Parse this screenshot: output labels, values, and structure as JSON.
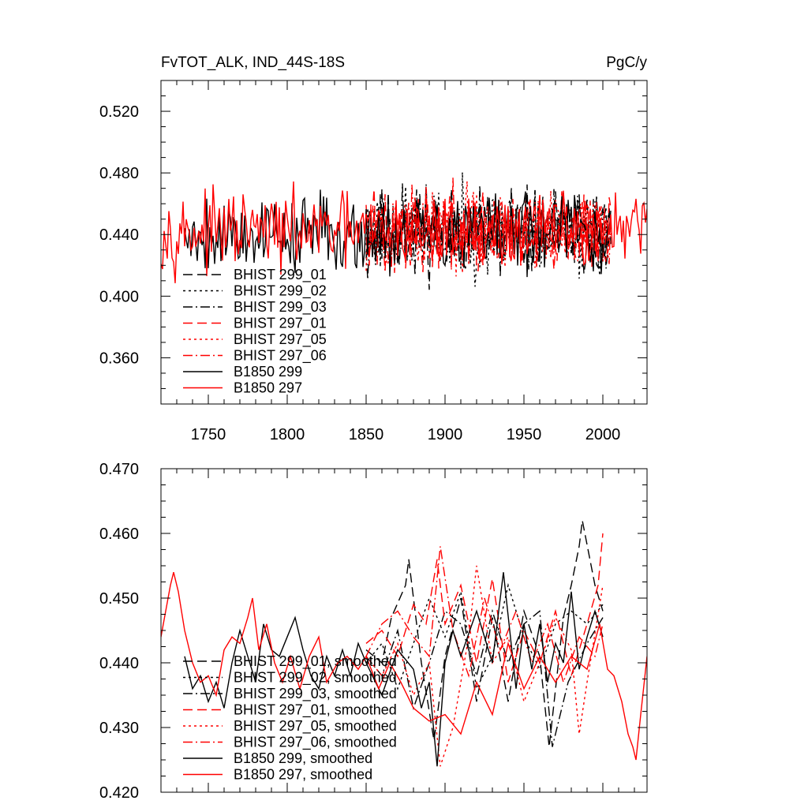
{
  "chart_data": [
    {
      "type": "line",
      "title": "FvTOT_ALK, IND_44S-18S",
      "units": "PgC/y",
      "xlabel": "",
      "ylabel": "",
      "xlim": [
        1720,
        2028
      ],
      "ylim": [
        0.33,
        0.54
      ],
      "x_ticks": [
        1750,
        1800,
        1850,
        1900,
        1950,
        2000
      ],
      "x_tick_labels": [
        "1750",
        "1800",
        "1850",
        "1900",
        "1950",
        "2000"
      ],
      "y_ticks": [
        0.36,
        0.4,
        0.44,
        0.48,
        0.52
      ],
      "y_tick_labels": [
        "0.360",
        "0.400",
        "0.440",
        "0.480",
        "0.520"
      ],
      "legend_position": "lower-left",
      "series": [
        {
          "name": "BHIST 299_01",
          "color": "#000000",
          "dash": "long-dash",
          "x_start": 1850,
          "x_end": 2005,
          "mean": 0.442,
          "amplitude": 0.024,
          "seed": 11
        },
        {
          "name": "BHIST 299_02",
          "color": "#000000",
          "dash": "dot",
          "x_start": 1850,
          "x_end": 2005,
          "mean": 0.442,
          "amplitude": 0.024,
          "seed": 23
        },
        {
          "name": "BHIST 299_03",
          "color": "#000000",
          "dash": "dash-dot",
          "x_start": 1850,
          "x_end": 2005,
          "mean": 0.442,
          "amplitude": 0.024,
          "seed": 37
        },
        {
          "name": "BHIST 297_01",
          "color": "#ff0000",
          "dash": "long-dash",
          "x_start": 1850,
          "x_end": 2005,
          "mean": 0.443,
          "amplitude": 0.022,
          "seed": 41
        },
        {
          "name": "BHIST 297_05",
          "color": "#ff0000",
          "dash": "dot",
          "x_start": 1850,
          "x_end": 2005,
          "mean": 0.443,
          "amplitude": 0.022,
          "seed": 53
        },
        {
          "name": "BHIST 297_06",
          "color": "#ff0000",
          "dash": "dash-dot",
          "x_start": 1850,
          "x_end": 2005,
          "mean": 0.443,
          "amplitude": 0.022,
          "seed": 67
        },
        {
          "name": "B1850 299",
          "color": "#000000",
          "dash": "solid",
          "x_start": 1735,
          "x_end": 2005,
          "mean": 0.441,
          "amplitude": 0.022,
          "seed": 79
        },
        {
          "name": "B1850 297",
          "color": "#ff0000",
          "dash": "solid",
          "x_start": 1720,
          "x_end": 2028,
          "mean": 0.442,
          "amplitude": 0.02,
          "seed": 97
        }
      ]
    },
    {
      "type": "line",
      "title": "",
      "xlabel": "",
      "ylabel": "",
      "xlim": [
        1720,
        2028
      ],
      "ylim": [
        0.42,
        0.47
      ],
      "x_ticks": [
        1750,
        1800,
        1850,
        1900,
        1950,
        2000
      ],
      "y_ticks": [
        0.42,
        0.43,
        0.44,
        0.45,
        0.46,
        0.47
      ],
      "y_tick_labels": [
        "0.420",
        "0.430",
        "0.440",
        "0.450",
        "0.460",
        "0.470"
      ],
      "legend_position": "lower-left",
      "series": [
        {
          "name": "BHIST 299_01, smoothed",
          "color": "#000000",
          "dash": "long-dash",
          "points": [
            [
              1850,
              0.442
            ],
            [
              1860,
              0.44
            ],
            [
              1866,
              0.447
            ],
            [
              1875,
              0.452
            ],
            [
              1877,
              0.456
            ],
            [
              1885,
              0.44
            ],
            [
              1893,
              0.428
            ],
            [
              1900,
              0.441
            ],
            [
              1910,
              0.45
            ],
            [
              1920,
              0.434
            ],
            [
              1930,
              0.447
            ],
            [
              1940,
              0.434
            ],
            [
              1950,
              0.448
            ],
            [
              1960,
              0.441
            ],
            [
              1966,
              0.427
            ],
            [
              1975,
              0.447
            ],
            [
              1980,
              0.452
            ],
            [
              1985,
              0.458
            ],
            [
              1987,
              0.462
            ],
            [
              1995,
              0.452
            ],
            [
              2000,
              0.448
            ]
          ]
        },
        {
          "name": "BHIST 299_02, smoothed",
          "color": "#000000",
          "dash": "dot",
          "points": [
            [
              1850,
              0.44
            ],
            [
              1860,
              0.443
            ],
            [
              1870,
              0.436
            ],
            [
              1880,
              0.443
            ],
            [
              1890,
              0.45
            ],
            [
              1900,
              0.444
            ],
            [
              1910,
              0.451
            ],
            [
              1920,
              0.436
            ],
            [
              1930,
              0.441
            ],
            [
              1940,
              0.452
            ],
            [
              1950,
              0.444
            ],
            [
              1960,
              0.439
            ],
            [
              1970,
              0.446
            ],
            [
              1980,
              0.448
            ],
            [
              1990,
              0.446
            ],
            [
              2000,
              0.449
            ]
          ]
        },
        {
          "name": "BHIST 299_03, smoothed",
          "color": "#000000",
          "dash": "dash-dot",
          "points": [
            [
              1850,
              0.441
            ],
            [
              1860,
              0.438
            ],
            [
              1870,
              0.445
            ],
            [
              1880,
              0.433
            ],
            [
              1890,
              0.44
            ],
            [
              1900,
              0.448
            ],
            [
              1910,
              0.446
            ],
            [
              1920,
              0.438
            ],
            [
              1930,
              0.448
            ],
            [
              1940,
              0.44
            ],
            [
              1950,
              0.446
            ],
            [
              1960,
              0.448
            ],
            [
              1968,
              0.427
            ],
            [
              1978,
              0.437
            ],
            [
              1990,
              0.443
            ],
            [
              2000,
              0.447
            ]
          ]
        },
        {
          "name": "BHIST 297_01, smoothed",
          "color": "#ff0000",
          "dash": "long-dash",
          "points": [
            [
              1850,
              0.443
            ],
            [
              1860,
              0.445
            ],
            [
              1870,
              0.441
            ],
            [
              1880,
              0.449
            ],
            [
              1888,
              0.446
            ],
            [
              1895,
              0.456
            ],
            [
              1900,
              0.446
            ],
            [
              1910,
              0.452
            ],
            [
              1920,
              0.44
            ],
            [
              1930,
              0.453
            ],
            [
              1940,
              0.437
            ],
            [
              1950,
              0.445
            ],
            [
              1960,
              0.44
            ],
            [
              1970,
              0.448
            ],
            [
              1980,
              0.438
            ],
            [
              1990,
              0.446
            ],
            [
              1997,
              0.452
            ],
            [
              2000,
              0.46
            ]
          ]
        },
        {
          "name": "BHIST 297_05, smoothed",
          "color": "#ff0000",
          "dash": "dot",
          "points": [
            [
              1850,
              0.441
            ],
            [
              1860,
              0.438
            ],
            [
              1870,
              0.443
            ],
            [
              1880,
              0.435
            ],
            [
              1890,
              0.44
            ],
            [
              1897,
              0.424
            ],
            [
              1905,
              0.43
            ],
            [
              1915,
              0.444
            ],
            [
              1920,
              0.455
            ],
            [
              1930,
              0.44
            ],
            [
              1940,
              0.444
            ],
            [
              1950,
              0.434
            ],
            [
              1960,
              0.44
            ],
            [
              1970,
              0.447
            ],
            [
              1980,
              0.442
            ],
            [
              1985,
              0.429
            ],
            [
              1990,
              0.437
            ],
            [
              2000,
              0.452
            ]
          ]
        },
        {
          "name": "BHIST 297_06, smoothed",
          "color": "#ff0000",
          "dash": "dash-dot",
          "points": [
            [
              1850,
              0.441
            ],
            [
              1860,
              0.446
            ],
            [
              1870,
              0.448
            ],
            [
              1880,
              0.444
            ],
            [
              1890,
              0.441
            ],
            [
              1897,
              0.458
            ],
            [
              1905,
              0.445
            ],
            [
              1915,
              0.438
            ],
            [
              1925,
              0.45
            ],
            [
              1935,
              0.442
            ],
            [
              1945,
              0.448
            ],
            [
              1955,
              0.44
            ],
            [
              1965,
              0.446
            ],
            [
              1975,
              0.437
            ],
            [
              1985,
              0.444
            ],
            [
              1995,
              0.441
            ],
            [
              2000,
              0.446
            ]
          ]
        },
        {
          "name": "B1850 299, smoothed",
          "color": "#000000",
          "dash": "solid",
          "points": [
            [
              1735,
              0.441
            ],
            [
              1740,
              0.436
            ],
            [
              1745,
              0.438
            ],
            [
              1750,
              0.434
            ],
            [
              1755,
              0.437
            ],
            [
              1760,
              0.433
            ],
            [
              1765,
              0.44
            ],
            [
              1770,
              0.445
            ],
            [
              1775,
              0.441
            ],
            [
              1780,
              0.437
            ],
            [
              1785,
              0.446
            ],
            [
              1790,
              0.442
            ],
            [
              1795,
              0.441
            ],
            [
              1800,
              0.444
            ],
            [
              1805,
              0.447
            ],
            [
              1810,
              0.442
            ],
            [
              1815,
              0.438
            ],
            [
              1820,
              0.436
            ],
            [
              1825,
              0.441
            ],
            [
              1830,
              0.438
            ],
            [
              1835,
              0.442
            ],
            [
              1840,
              0.438
            ],
            [
              1845,
              0.443
            ],
            [
              1850,
              0.44
            ],
            [
              1860,
              0.435
            ],
            [
              1870,
              0.442
            ],
            [
              1880,
              0.439
            ],
            [
              1885,
              0.433
            ],
            [
              1890,
              0.437
            ],
            [
              1895,
              0.424
            ],
            [
              1900,
              0.44
            ],
            [
              1905,
              0.445
            ],
            [
              1910,
              0.441
            ],
            [
              1920,
              0.448
            ],
            [
              1930,
              0.44
            ],
            [
              1937,
              0.454
            ],
            [
              1945,
              0.436
            ],
            [
              1950,
              0.446
            ],
            [
              1955,
              0.439
            ],
            [
              1960,
              0.446
            ],
            [
              1965,
              0.437
            ],
            [
              1970,
              0.443
            ],
            [
              1975,
              0.44
            ],
            [
              1980,
              0.451
            ],
            [
              1985,
              0.439
            ],
            [
              1990,
              0.444
            ],
            [
              1995,
              0.448
            ],
            [
              2000,
              0.444
            ]
          ]
        },
        {
          "name": "B1850 297, smoothed",
          "color": "#ff0000",
          "dash": "solid",
          "points": [
            [
              1720,
              0.444
            ],
            [
              1723,
              0.448
            ],
            [
              1726,
              0.452
            ],
            [
              1728,
              0.454
            ],
            [
              1731,
              0.451
            ],
            [
              1735,
              0.445
            ],
            [
              1740,
              0.44
            ],
            [
              1745,
              0.437
            ],
            [
              1750,
              0.438
            ],
            [
              1755,
              0.435
            ],
            [
              1760,
              0.442
            ],
            [
              1765,
              0.444
            ],
            [
              1770,
              0.443
            ],
            [
              1775,
              0.447
            ],
            [
              1778,
              0.45
            ],
            [
              1782,
              0.442
            ],
            [
              1787,
              0.446
            ],
            [
              1792,
              0.44
            ],
            [
              1797,
              0.437
            ],
            [
              1802,
              0.441
            ],
            [
              1808,
              0.436
            ],
            [
              1814,
              0.441
            ],
            [
              1820,
              0.444
            ],
            [
              1825,
              0.437
            ],
            [
              1832,
              0.44
            ],
            [
              1838,
              0.441
            ],
            [
              1845,
              0.439
            ],
            [
              1850,
              0.441
            ],
            [
              1858,
              0.436
            ],
            [
              1865,
              0.44
            ],
            [
              1872,
              0.437
            ],
            [
              1880,
              0.433
            ],
            [
              1890,
              0.431
            ],
            [
              1900,
              0.432
            ],
            [
              1910,
              0.429
            ],
            [
              1920,
              0.437
            ],
            [
              1930,
              0.432
            ],
            [
              1940,
              0.443
            ],
            [
              1950,
              0.436
            ],
            [
              1960,
              0.441
            ],
            [
              1970,
              0.437
            ],
            [
              1980,
              0.441
            ],
            [
              1990,
              0.439
            ],
            [
              1998,
              0.446
            ],
            [
              2003,
              0.439
            ],
            [
              2007,
              0.438
            ],
            [
              2012,
              0.434
            ],
            [
              2016,
              0.429
            ],
            [
              2019,
              0.427
            ],
            [
              2021,
              0.425
            ],
            [
              2024,
              0.432
            ],
            [
              2028,
              0.441
            ]
          ]
        }
      ]
    }
  ]
}
